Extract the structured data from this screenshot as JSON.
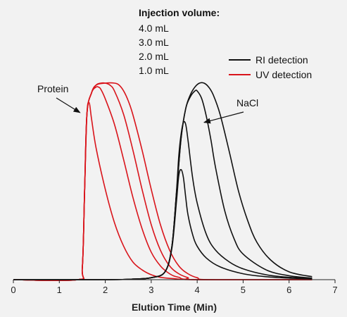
{
  "chart_data": {
    "type": "line",
    "title": "",
    "xlabel": "Elution Time (Min)",
    "ylabel": "",
    "xlim": [
      0,
      7
    ],
    "ylim": [
      0,
      1
    ],
    "xticks": [
      "0",
      "1",
      "2",
      "3",
      "4",
      "5",
      "6",
      "7"
    ],
    "grid": false,
    "legend": {
      "placement": "top-right",
      "entries": [
        {
          "label": "RI detection",
          "color": "#111111"
        },
        {
          "label": "UV detection",
          "color": "#d9141b"
        }
      ]
    },
    "injection_block": {
      "title": "Injection volume:",
      "items": [
        "4.0 mL",
        "3.0 mL",
        "2.0 mL",
        "1.0 mL"
      ]
    },
    "annotations": [
      {
        "text": "Protein",
        "arrow_to": [
          1.45,
          0.85
        ]
      },
      {
        "text": "NaCl",
        "arrow_to": [
          4.15,
          0.8
        ]
      }
    ],
    "uv_series": [
      {
        "volume": "1.0 mL",
        "x": [
          0,
          1.4,
          1.5,
          1.55,
          1.6,
          1.65,
          1.7,
          1.8,
          2.0,
          2.2,
          2.4,
          2.6,
          2.8,
          3.0,
          3.2,
          3.5,
          4.0,
          6.5
        ],
        "y": [
          0,
          0,
          0.06,
          0.45,
          0.84,
          0.9,
          0.82,
          0.67,
          0.46,
          0.29,
          0.17,
          0.09,
          0.05,
          0.025,
          0.012,
          0.005,
          0,
          0
        ]
      },
      {
        "volume": "2.0 mL",
        "x": [
          0,
          1.4,
          1.5,
          1.55,
          1.6,
          1.7,
          1.8,
          1.85,
          1.9,
          2.0,
          2.2,
          2.4,
          2.6,
          2.8,
          3.0,
          3.2,
          3.4,
          3.6,
          4.0,
          6.5
        ],
        "y": [
          0,
          0,
          0.06,
          0.45,
          0.84,
          0.95,
          0.98,
          0.98,
          0.97,
          0.92,
          0.79,
          0.61,
          0.42,
          0.26,
          0.14,
          0.07,
          0.03,
          0.012,
          0,
          0
        ]
      },
      {
        "volume": "3.0 mL",
        "x": [
          0,
          1.4,
          1.5,
          1.55,
          1.6,
          1.7,
          1.8,
          1.9,
          2.0,
          2.1,
          2.2,
          2.4,
          2.6,
          2.8,
          3.0,
          3.2,
          3.4,
          3.6,
          3.8,
          4.0,
          6.5
        ],
        "y": [
          0,
          0,
          0.06,
          0.45,
          0.84,
          0.95,
          0.99,
          1.0,
          1.0,
          0.99,
          0.96,
          0.84,
          0.66,
          0.46,
          0.28,
          0.15,
          0.07,
          0.03,
          0.01,
          0,
          0
        ]
      },
      {
        "volume": "4.0 mL",
        "x": [
          0,
          1.4,
          1.5,
          1.55,
          1.6,
          1.7,
          1.8,
          2.0,
          2.2,
          2.3,
          2.4,
          2.5,
          2.6,
          2.8,
          3.0,
          3.2,
          3.4,
          3.6,
          3.8,
          4.0,
          4.3,
          6.5
        ],
        "y": [
          0,
          0,
          0.06,
          0.45,
          0.84,
          0.95,
          0.99,
          1.0,
          1.0,
          0.99,
          0.96,
          0.91,
          0.84,
          0.66,
          0.46,
          0.28,
          0.15,
          0.07,
          0.03,
          0.01,
          0,
          0
        ]
      }
    ],
    "ri_series": [
      {
        "volume": "1.0 mL",
        "x": [
          0,
          2.0,
          2.6,
          3.0,
          3.3,
          3.45,
          3.55,
          3.6,
          3.65,
          3.7,
          3.75,
          3.8,
          3.9,
          4.0,
          4.2,
          4.5,
          5.0,
          5.5,
          6.0,
          6.5
        ],
        "y": [
          0,
          0,
          0.003,
          0.01,
          0.04,
          0.16,
          0.4,
          0.53,
          0.56,
          0.52,
          0.42,
          0.33,
          0.23,
          0.17,
          0.11,
          0.065,
          0.03,
          0.015,
          0.008,
          0.005
        ]
      },
      {
        "volume": "2.0 mL",
        "x": [
          0,
          2.0,
          2.6,
          3.0,
          3.3,
          3.45,
          3.55,
          3.6,
          3.65,
          3.7,
          3.75,
          3.8,
          3.9,
          4.0,
          4.2,
          4.4,
          4.7,
          5.0,
          5.5,
          6.0,
          6.5
        ],
        "y": [
          0,
          0,
          0.003,
          0.01,
          0.04,
          0.17,
          0.45,
          0.63,
          0.74,
          0.8,
          0.79,
          0.71,
          0.52,
          0.39,
          0.23,
          0.15,
          0.09,
          0.055,
          0.025,
          0.012,
          0.006
        ]
      },
      {
        "volume": "3.0 mL",
        "x": [
          0,
          2.0,
          2.6,
          3.0,
          3.3,
          3.45,
          3.55,
          3.65,
          3.75,
          3.85,
          3.95,
          4.0,
          4.1,
          4.2,
          4.3,
          4.4,
          4.6,
          4.8,
          5.0,
          5.5,
          6.0,
          6.5
        ],
        "y": [
          0,
          0,
          0.003,
          0.01,
          0.04,
          0.17,
          0.44,
          0.72,
          0.87,
          0.93,
          0.96,
          0.96,
          0.92,
          0.83,
          0.71,
          0.57,
          0.35,
          0.21,
          0.13,
          0.05,
          0.02,
          0.008
        ]
      },
      {
        "volume": "4.0 mL",
        "x": [
          0,
          2.0,
          2.6,
          3.0,
          3.3,
          3.45,
          3.55,
          3.65,
          3.75,
          3.85,
          3.95,
          4.05,
          4.15,
          4.25,
          4.35,
          4.5,
          4.7,
          4.9,
          5.1,
          5.3,
          5.6,
          6.0,
          6.5
        ],
        "y": [
          0,
          0,
          0.003,
          0.01,
          0.04,
          0.17,
          0.44,
          0.72,
          0.87,
          0.94,
          0.98,
          1.0,
          1.0,
          0.98,
          0.94,
          0.84,
          0.65,
          0.45,
          0.3,
          0.19,
          0.1,
          0.04,
          0.015
        ]
      }
    ]
  }
}
